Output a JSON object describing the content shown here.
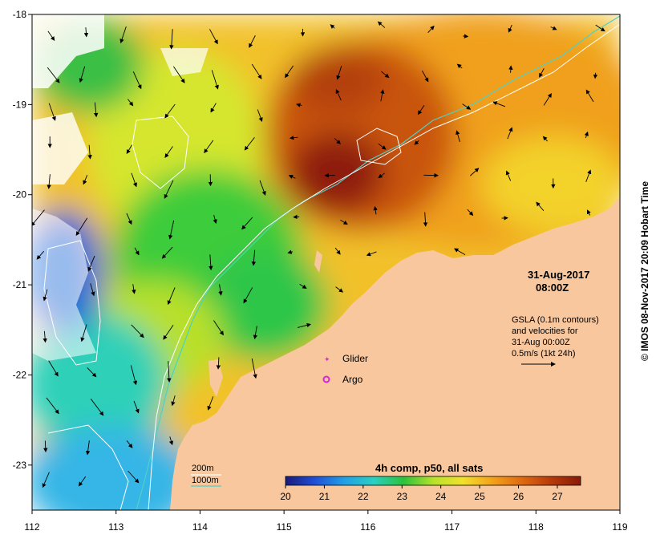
{
  "map": {
    "date": "31-Aug-2017",
    "time": "08:00Z",
    "info_lines": [
      "GSLA (0.1m contours)",
      "and velocities for",
      "31-Aug 00:00Z",
      "0.5m/s (1kt 24h)"
    ],
    "markers": [
      {
        "name": "glider",
        "label": "Glider",
        "color": "#cc33cc"
      },
      {
        "name": "argo",
        "label": "Argo",
        "color": "#dd22dd"
      }
    ],
    "contour_legend": [
      {
        "label": "200m",
        "color": "#ffffff"
      },
      {
        "label": "1000m",
        "color": "#4fd0c8"
      }
    ],
    "colorbar": {
      "title": "4h comp, p50, all sats",
      "min": 20,
      "max": 27.6,
      "ticks": [
        "20",
        "21",
        "22",
        "23",
        "24",
        "25",
        "26",
        "27"
      ],
      "colors": [
        "#1a1a7a",
        "#1f4fd8",
        "#22a0e6",
        "#2ad0c0",
        "#2cc23a",
        "#b6e22a",
        "#f2e12a",
        "#f5a21a",
        "#e06a10",
        "#b83a0a",
        "#8a1a08"
      ]
    },
    "x_axis": {
      "min": 112,
      "max": 119,
      "ticks": [
        "112",
        "113",
        "114",
        "115",
        "116",
        "117",
        "118",
        "119"
      ]
    },
    "y_axis": {
      "min": -23.5,
      "max": -18,
      "ticks": [
        "-18",
        "-19",
        "-20",
        "-21",
        "-22",
        "-23"
      ]
    },
    "credit": "© IMOS 08-Nov-2017 20:09 Hobart Time",
    "colors": {
      "land": "#f9c79d"
    }
  }
}
